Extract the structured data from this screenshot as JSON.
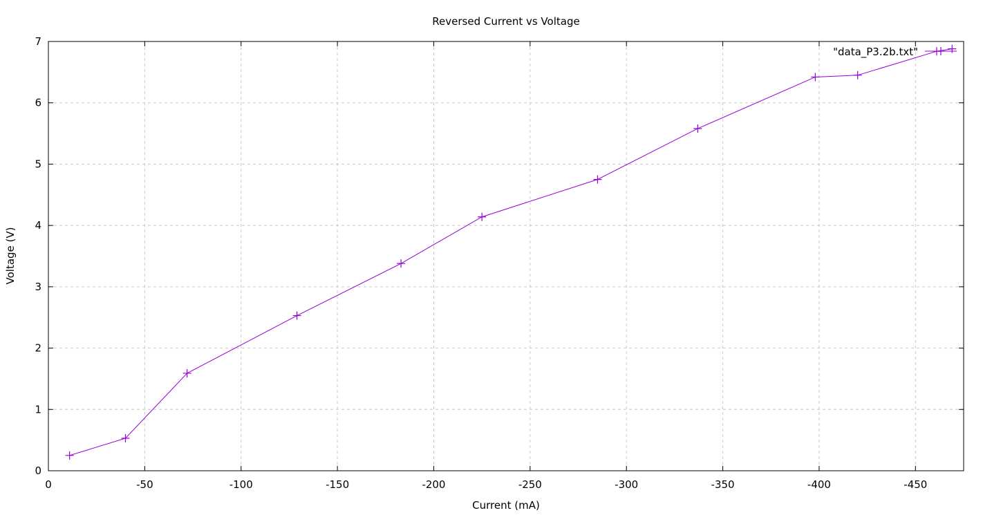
{
  "chart_data": {
    "type": "line",
    "title": "Reversed Current vs Voltage",
    "xlabel": "Current (mA)",
    "ylabel": "Voltage (V)",
    "xlim": [
      0,
      -475
    ],
    "ylim": [
      0,
      7
    ],
    "x_ticks": [
      0,
      -50,
      -100,
      -150,
      -200,
      -250,
      -300,
      -350,
      -400,
      -450
    ],
    "y_ticks": [
      0,
      1,
      2,
      3,
      4,
      5,
      6,
      7
    ],
    "grid": true,
    "legend_position": "top-right",
    "series": [
      {
        "name": "\"data_P3.2b.txt\"",
        "color": "#9400d3",
        "marker": "plus",
        "x": [
          -11,
          -40,
          -72,
          -129,
          -183,
          -225,
          -285,
          -337,
          -398,
          -420,
          -461,
          -469
        ],
        "y": [
          0.25,
          0.53,
          1.59,
          2.53,
          3.38,
          4.14,
          4.75,
          5.58,
          6.42,
          6.45,
          6.84,
          6.88
        ]
      }
    ]
  }
}
